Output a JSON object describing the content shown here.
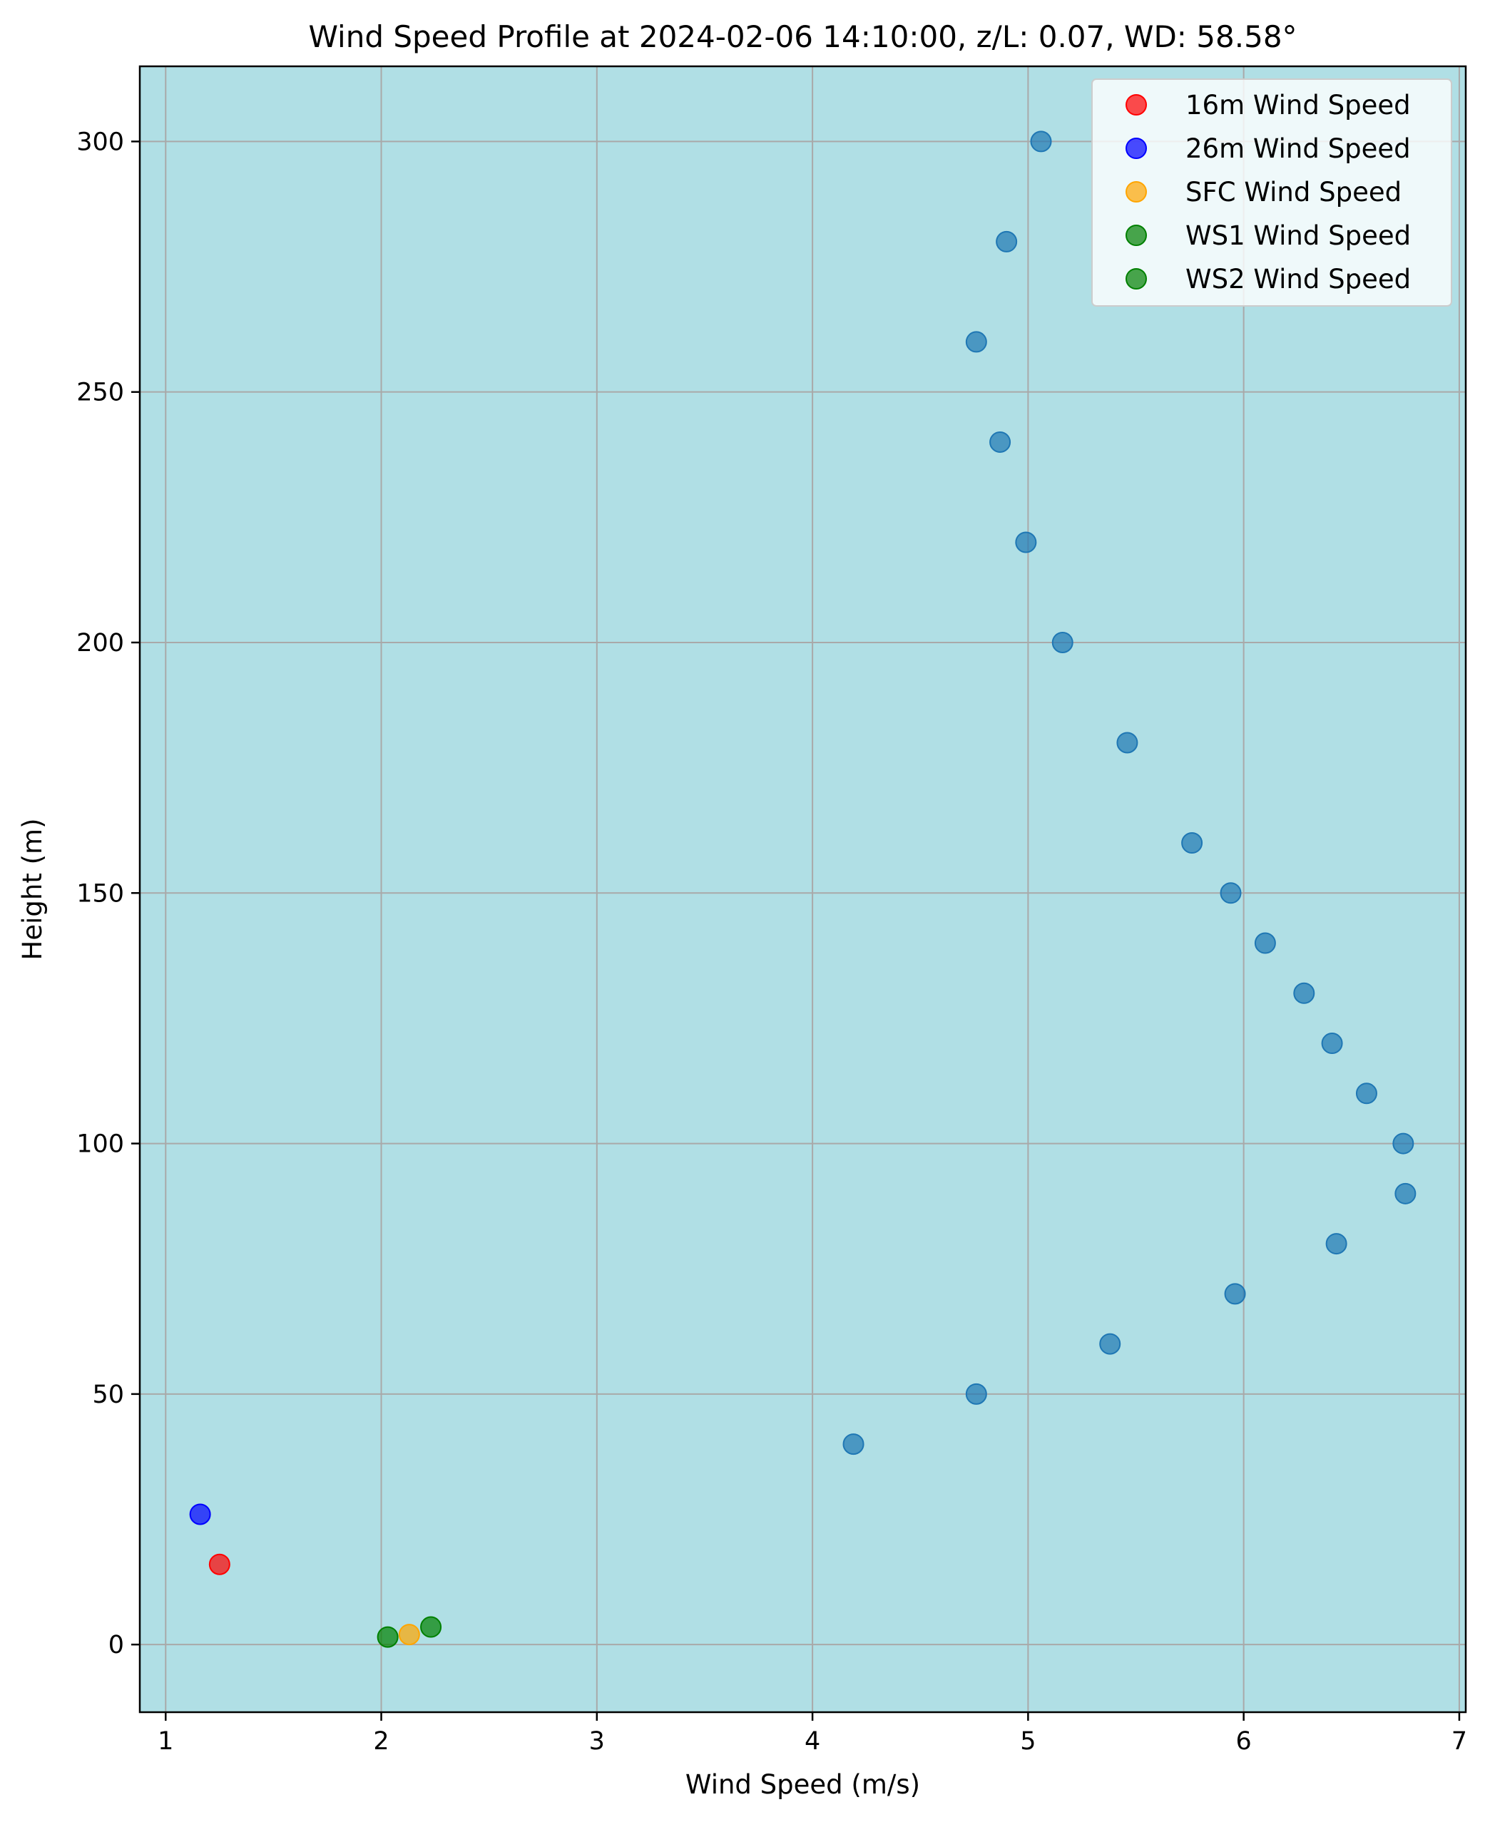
{
  "chart_data": {
    "type": "scatter",
    "title": "Wind Speed Profile at 2024-02-06 14:10:00, z/L: 0.07, WD: 58.58°",
    "xlabel": "Wind Speed (m/s)",
    "ylabel": "Height (m)",
    "xlim": [
      0.88,
      7.03
    ],
    "ylim": [
      -13.5,
      315
    ],
    "xticks": [
      1,
      2,
      3,
      4,
      5,
      6,
      7
    ],
    "yticks": [
      0,
      50,
      100,
      150,
      200,
      250,
      300
    ],
    "grid": true,
    "legend_position": "upper right",
    "background_color": "#b0dfe5",
    "series": [
      {
        "name": "",
        "color": "#1f77b4",
        "in_legend": false,
        "points": [
          {
            "x": 5.06,
            "y": 300
          },
          {
            "x": 4.9,
            "y": 280
          },
          {
            "x": 4.76,
            "y": 260
          },
          {
            "x": 4.87,
            "y": 240
          },
          {
            "x": 4.99,
            "y": 220
          },
          {
            "x": 5.16,
            "y": 200
          },
          {
            "x": 5.46,
            "y": 180
          },
          {
            "x": 5.76,
            "y": 160
          },
          {
            "x": 5.94,
            "y": 150
          },
          {
            "x": 6.1,
            "y": 140
          },
          {
            "x": 6.28,
            "y": 130
          },
          {
            "x": 6.41,
            "y": 120
          },
          {
            "x": 6.57,
            "y": 110
          },
          {
            "x": 6.74,
            "y": 100
          },
          {
            "x": 6.75,
            "y": 90
          },
          {
            "x": 6.43,
            "y": 80
          },
          {
            "x": 5.96,
            "y": 70
          },
          {
            "x": 5.38,
            "y": 60
          },
          {
            "x": 4.76,
            "y": 50
          },
          {
            "x": 4.19,
            "y": 40
          }
        ]
      },
      {
        "name": "16m Wind Speed",
        "color": "#ff0000",
        "in_legend": true,
        "points": [
          {
            "x": 1.25,
            "y": 16
          }
        ]
      },
      {
        "name": "26m Wind Speed",
        "color": "#0000ff",
        "in_legend": true,
        "points": [
          {
            "x": 1.16,
            "y": 26
          }
        ]
      },
      {
        "name": "SFC Wind Speed",
        "color": "#ffa500",
        "in_legend": true,
        "points": [
          {
            "x": 2.13,
            "y": 2
          }
        ]
      },
      {
        "name": "WS1 Wind Speed",
        "color": "#008000",
        "in_legend": true,
        "points": [
          {
            "x": 2.03,
            "y": 1.5
          }
        ]
      },
      {
        "name": "WS2 Wind Speed",
        "color": "#008000",
        "in_legend": true,
        "points": [
          {
            "x": 2.23,
            "y": 3.5
          }
        ]
      }
    ]
  }
}
